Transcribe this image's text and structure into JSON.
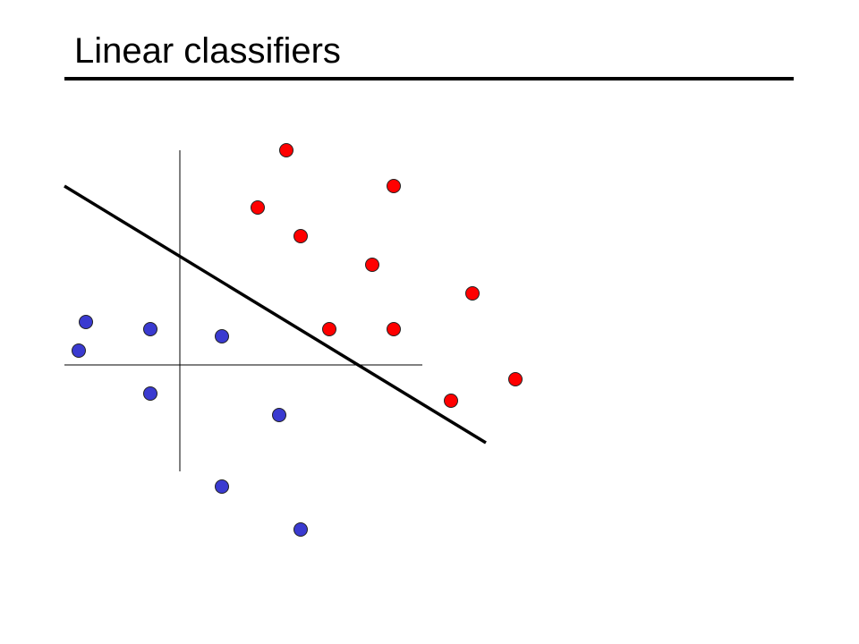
{
  "header": {
    "title": "Linear classifiers"
  }
}
